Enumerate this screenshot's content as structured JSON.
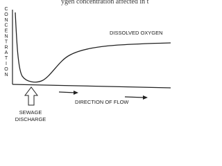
{
  "header": {
    "text": "ygen concentration affected in t"
  },
  "axis_label": "CONCENTRATION",
  "curve_label": "DISSOLVED OXYGEN",
  "source_label": {
    "line1": "SEWAGE",
    "line2": "DISCHARGE"
  },
  "flow_label": "DIRECTION OF FLOW"
}
